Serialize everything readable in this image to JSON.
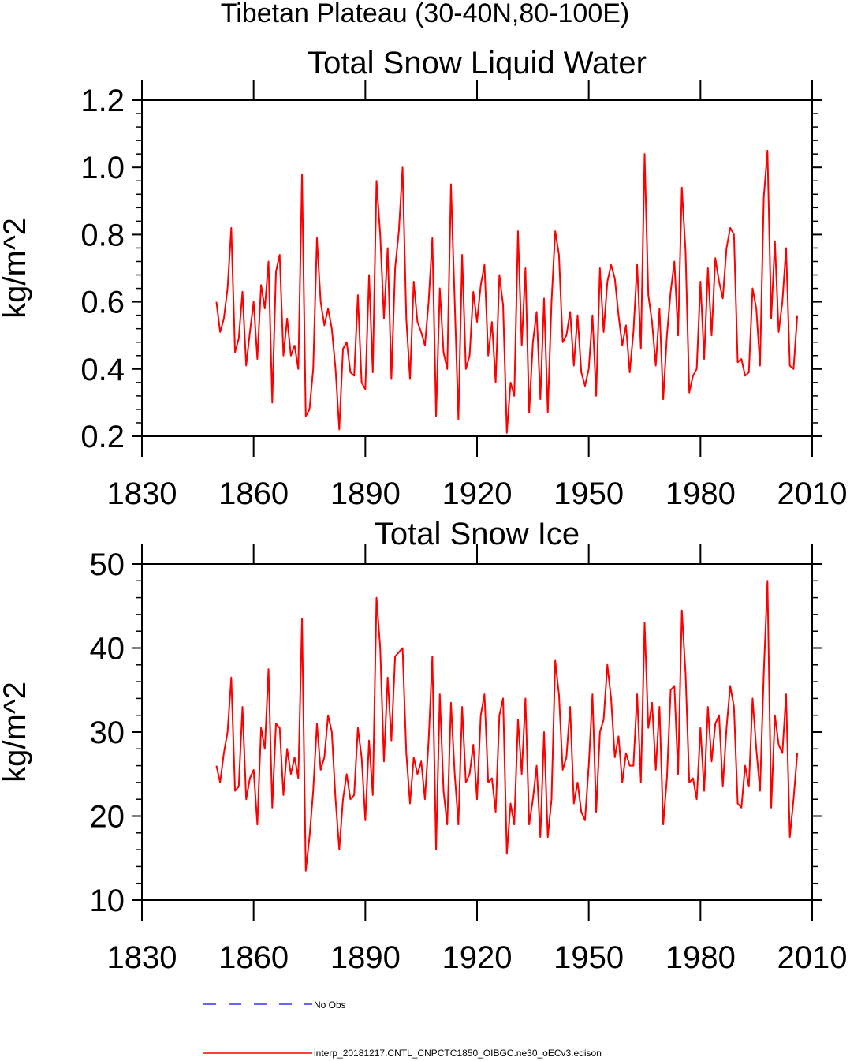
{
  "figure_title": "Tibetan Plateau (30-40N,80-100E)",
  "legend": [
    {
      "label": "No Obs",
      "color": "#3333ff",
      "dash": true
    },
    {
      "label": "interp_20181217.CNTL_CNPCTC1850_OIBGC.ne30_oECv3.edison",
      "color": "#ff0000",
      "dash": false
    }
  ],
  "chart_data": [
    {
      "type": "line",
      "title": "Total Snow Liquid Water",
      "xlabel": "",
      "ylabel": "kg/m^2",
      "xlim": [
        1830,
        2010
      ],
      "ylim": [
        0.2,
        1.2
      ],
      "xticks": [
        "1830",
        "1860",
        "1890",
        "1920",
        "1950",
        "1980",
        "2010"
      ],
      "yticks": [
        "0.2",
        "0.4",
        "0.6",
        "0.8",
        "1.0",
        "1.2"
      ],
      "grid": false,
      "series": [
        {
          "color": "#ff0000",
          "x_start": 1850,
          "x_step": 1,
          "values": [
            0.6,
            0.51,
            0.55,
            0.64,
            0.82,
            0.45,
            0.49,
            0.63,
            0.41,
            0.51,
            0.6,
            0.43,
            0.65,
            0.58,
            0.72,
            0.3,
            0.69,
            0.74,
            0.44,
            0.55,
            0.44,
            0.47,
            0.4,
            0.98,
            0.26,
            0.28,
            0.4,
            0.79,
            0.6,
            0.53,
            0.58,
            0.52,
            0.4,
            0.22,
            0.46,
            0.48,
            0.39,
            0.38,
            0.62,
            0.36,
            0.34,
            0.68,
            0.39,
            0.96,
            0.8,
            0.55,
            0.76,
            0.37,
            0.7,
            0.81,
            1.0,
            0.55,
            0.37,
            0.66,
            0.54,
            0.51,
            0.47,
            0.6,
            0.79,
            0.26,
            0.64,
            0.45,
            0.4,
            0.95,
            0.6,
            0.25,
            0.74,
            0.4,
            0.44,
            0.63,
            0.54,
            0.65,
            0.71,
            0.44,
            0.54,
            0.36,
            0.68,
            0.59,
            0.21,
            0.36,
            0.32,
            0.81,
            0.47,
            0.7,
            0.27,
            0.48,
            0.57,
            0.31,
            0.61,
            0.27,
            0.6,
            0.81,
            0.74,
            0.48,
            0.5,
            0.57,
            0.41,
            0.56,
            0.39,
            0.35,
            0.4,
            0.56,
            0.32,
            0.7,
            0.51,
            0.66,
            0.71,
            0.67,
            0.56,
            0.47,
            0.53,
            0.39,
            0.51,
            0.71,
            0.46,
            1.04,
            0.62,
            0.54,
            0.41,
            0.58,
            0.31,
            0.5,
            0.63,
            0.72,
            0.5,
            0.94,
            0.75,
            0.33,
            0.38,
            0.4,
            0.66,
            0.43,
            0.7,
            0.5,
            0.73,
            0.66,
            0.61,
            0.76,
            0.82,
            0.8,
            0.42,
            0.43,
            0.38,
            0.39,
            0.64,
            0.58,
            0.41,
            0.91,
            1.05,
            0.55,
            0.78,
            0.51,
            0.6,
            0.76,
            0.41,
            0.4,
            0.56
          ]
        }
      ]
    },
    {
      "type": "line",
      "title": "Total Snow Ice",
      "xlabel": "",
      "ylabel": "kg/m^2",
      "xlim": [
        1830,
        2010
      ],
      "ylim": [
        10,
        50
      ],
      "xticks": [
        "1830",
        "1860",
        "1890",
        "1920",
        "1950",
        "1980",
        "2010"
      ],
      "yticks": [
        "10",
        "20",
        "30",
        "40",
        "50"
      ],
      "grid": false,
      "series": [
        {
          "color": "#ff0000",
          "x_start": 1850,
          "x_step": 1,
          "values": [
            26,
            24,
            27.5,
            30,
            36.5,
            23,
            23.5,
            33,
            22,
            24.5,
            25.5,
            19,
            30.5,
            28,
            37.5,
            21,
            31,
            30.5,
            22.5,
            28,
            25,
            27,
            24.5,
            43.5,
            13.5,
            17.5,
            23,
            31,
            25.5,
            27,
            32,
            30,
            22,
            16,
            22,
            25,
            22,
            22.5,
            30.5,
            27,
            19.5,
            29,
            22.5,
            46,
            40,
            26.5,
            36.5,
            29,
            39,
            39.5,
            40,
            27.5,
            21.5,
            27,
            25,
            26.5,
            22,
            29,
            39,
            16,
            34.5,
            23,
            19,
            33.5,
            25,
            19,
            33,
            24,
            25,
            28.5,
            22,
            32,
            34.5,
            24,
            24.5,
            20.5,
            32,
            34,
            15.5,
            21.5,
            19,
            31.5,
            25,
            34,
            19,
            22,
            26,
            17.5,
            30,
            17.5,
            22,
            38.5,
            34.5,
            25.5,
            27,
            33,
            21.5,
            24,
            20.5,
            19.5,
            26,
            34.5,
            20.5,
            30,
            31.5,
            38,
            34,
            27,
            29.5,
            24,
            27.5,
            26,
            26,
            34.5,
            24,
            43,
            30.5,
            33.5,
            25.5,
            33,
            19,
            24.5,
            35,
            35.5,
            25,
            44.5,
            37,
            24,
            24.5,
            22,
            30.5,
            23,
            33,
            26.5,
            31,
            32,
            23.5,
            30.5,
            35.5,
            33,
            21.5,
            21,
            26,
            23.5,
            34,
            28,
            23,
            37,
            48,
            21,
            32,
            28.5,
            27.5,
            34.5,
            17.5,
            22,
            27.5
          ]
        }
      ]
    }
  ]
}
